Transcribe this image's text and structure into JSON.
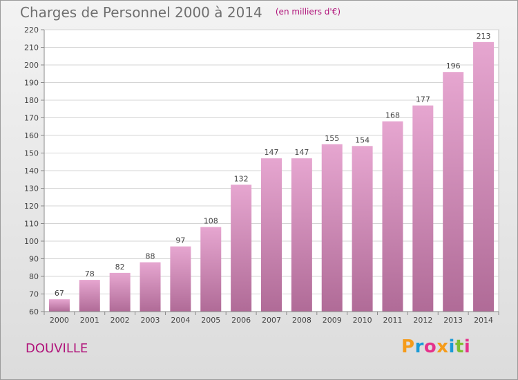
{
  "header": {
    "title": "Charges de Personnel 2000 à 2014",
    "subtitle": "(en milliers d'€)"
  },
  "footer": {
    "commune": "DOUVILLE",
    "logo_text": "Proxiti",
    "logo_colors": [
      "#f59b1a",
      "#1a9ad6",
      "#e5318b",
      "#f59b1a",
      "#1a9ad6",
      "#7dbf2f",
      "#e5318b"
    ]
  },
  "chart_data": {
    "type": "bar",
    "title": "Charges de Personnel 2000 à 2014",
    "subtitle": "(en milliers d'€)",
    "categories": [
      "2000",
      "2001",
      "2002",
      "2003",
      "2004",
      "2005",
      "2006",
      "2007",
      "2008",
      "2009",
      "2010",
      "2011",
      "2012",
      "2013",
      "2014"
    ],
    "values": [
      67,
      78,
      82,
      88,
      97,
      108,
      132,
      147,
      147,
      155,
      154,
      168,
      177,
      196,
      213
    ],
    "ylim": [
      60,
      220
    ],
    "yticks": [
      60,
      70,
      80,
      90,
      100,
      110,
      120,
      130,
      140,
      150,
      160,
      170,
      180,
      190,
      200,
      210,
      220
    ],
    "grid": true,
    "bar_color_top": "#e6a6d0",
    "bar_color_bottom": "#b06b97",
    "xlabel": "",
    "ylabel": ""
  }
}
